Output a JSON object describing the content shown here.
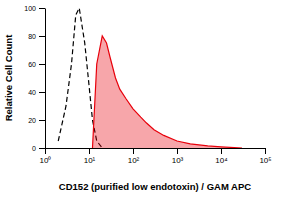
{
  "chart_data": {
    "type": "line",
    "xlabel": "CD152 (purified low endotoxin) / GAM APC",
    "ylabel": "Relative Cell Count",
    "log": "x",
    "x": [
      2,
      3,
      4,
      5,
      6,
      8,
      10,
      12,
      15,
      20,
      25,
      30,
      40,
      50,
      70,
      100,
      150,
      200,
      300,
      500,
      1000,
      2000,
      5000,
      10000,
      20000,
      30000
    ],
    "series": [
      {
        "type": "line",
        "line_style": "dashed",
        "color": "#000000",
        "values": [
          5,
          30,
          60,
          95,
          100,
          75,
          45,
          20,
          5,
          0,
          null,
          null,
          null,
          null,
          null,
          null,
          null,
          null,
          null,
          null,
          null,
          null,
          null,
          null,
          null,
          null
        ]
      },
      {
        "type": "area",
        "color": "#e8000b",
        "values": [
          null,
          null,
          null,
          null,
          null,
          null,
          null,
          0,
          60,
          80,
          75,
          65,
          50,
          42,
          35,
          28,
          22,
          18,
          13,
          9,
          5,
          3,
          1.5,
          0.8,
          0.3,
          0
        ]
      }
    ],
    "xlim": [
      1,
      100000
    ],
    "xticks": [
      {
        "value": 1,
        "label": "10⁰"
      },
      {
        "value": 10,
        "label": "10¹"
      },
      {
        "value": 100,
        "label": "10²"
      },
      {
        "value": 1000,
        "label": "10³"
      },
      {
        "value": 10000,
        "label": "10⁴"
      },
      {
        "value": 100000,
        "label": "10⁵"
      }
    ],
    "ylim": [
      0,
      100
    ],
    "yticks": [
      0,
      20,
      40,
      60,
      80,
      100
    ],
    "grid": false
  }
}
